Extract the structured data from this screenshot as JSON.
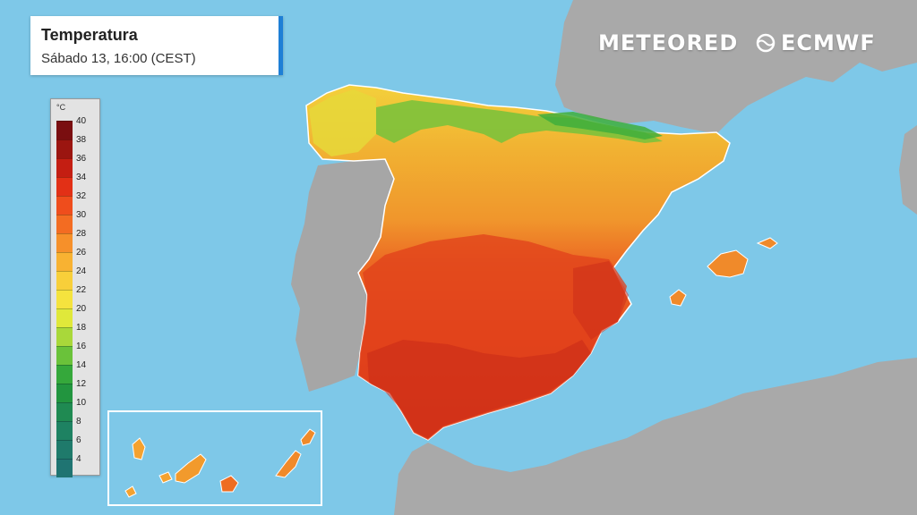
{
  "title": "Temperatura",
  "subtitle": "Sábado 13, 16:00 (CEST)",
  "brands": {
    "meteored": "METEORED",
    "ecmwf": "ECMWF",
    "ecmwf_icon": "wave-logo-icon"
  },
  "legend": {
    "unit": "°C",
    "ticks": [
      "40",
      "38",
      "36",
      "34",
      "32",
      "30",
      "28",
      "26",
      "24",
      "22",
      "20",
      "18",
      "16",
      "14",
      "12",
      "10",
      "8",
      "6",
      "4"
    ],
    "colors": [
      "#7a0e10",
      "#9b1510",
      "#c41e12",
      "#e23016",
      "#ef4d1c",
      "#f36c22",
      "#f6902a",
      "#f8b232",
      "#f8cf3a",
      "#f5e33e",
      "#e0e83a",
      "#a9d83a",
      "#6ac23a",
      "#35a83b",
      "#22953f",
      "#1f8a52",
      "#1e8262",
      "#1f7a6b",
      "#1f7472"
    ]
  },
  "colors": {
    "sea": "#7ec8e8",
    "land": "#a7a7a7",
    "accent": "#1e7fd6"
  }
}
